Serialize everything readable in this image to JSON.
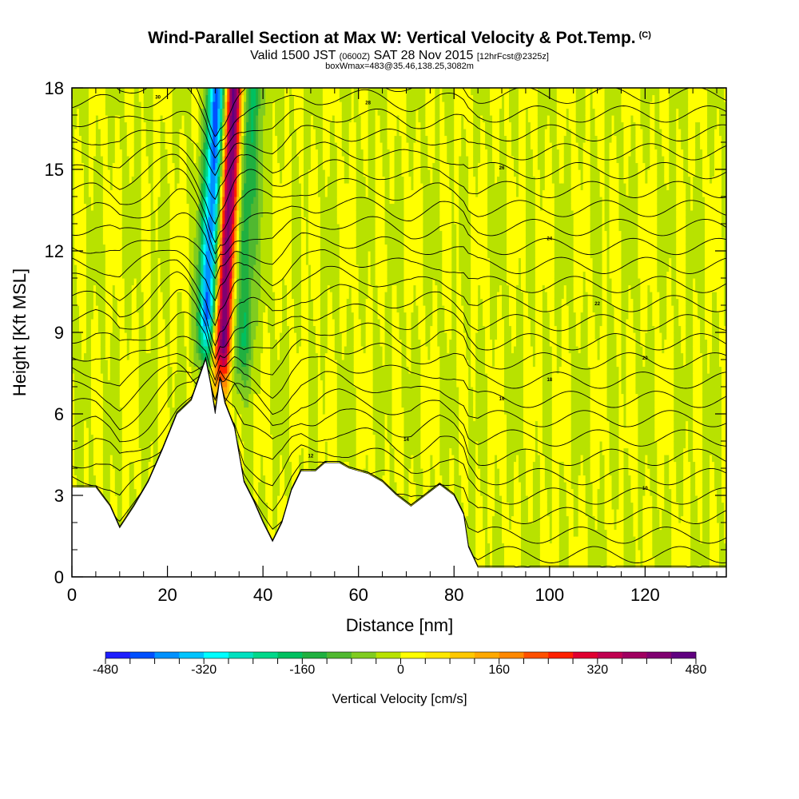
{
  "header": {
    "title": "Wind-Parallel Section at Max W: Vertical Velocity & Pot.Temp.",
    "copyright": "(C)",
    "valid_prefix": "Valid 1500 JST",
    "valid_zulu": "(0600Z)",
    "valid_date": "SAT 28 Nov 2015",
    "forecast": "[12hrFcst@2325z]",
    "box": "boxWmax=483@35.46,138.25,3082m"
  },
  "chart_data": {
    "type": "heatmap",
    "xlabel": "Distance [nm]",
    "ylabel": "Height [Kft MSL]",
    "xlim": [
      0,
      137
    ],
    "ylim": [
      0,
      18
    ],
    "x_ticks": [
      0,
      20,
      40,
      60,
      80,
      100,
      120
    ],
    "y_ticks": [
      0,
      3,
      6,
      9,
      12,
      15,
      18
    ],
    "x_tick_labels": [
      "0",
      "20",
      "40",
      "60",
      "80",
      "100",
      "120"
    ],
    "y_tick_labels": [
      "0",
      "3",
      "6",
      "9",
      "12",
      "15",
      "18"
    ],
    "colorbar": {
      "title": "Vertical Velocity [cm/s]",
      "min": -480,
      "max": 480,
      "tick_values": [
        -480,
        -320,
        -160,
        0,
        160,
        320,
        480
      ],
      "tick_labels": [
        "-480",
        "-320",
        "-160",
        "0",
        "160",
        "320",
        "480"
      ],
      "colors": [
        "#1e1eff",
        "#0050ff",
        "#0091ff",
        "#00c4ff",
        "#00ffff",
        "#00e0c0",
        "#00d88a",
        "#00c060",
        "#20b040",
        "#50b830",
        "#80cc20",
        "#b8e200",
        "#ffff00",
        "#ffe800",
        "#ffc800",
        "#ffa800",
        "#ff8800",
        "#ff5000",
        "#ff2000",
        "#e00030",
        "#c00050",
        "#a00060",
        "#800070",
        "#600080"
      ]
    },
    "terrain_kft": [
      [
        0,
        3.3
      ],
      [
        5,
        3.3
      ],
      [
        8,
        2.6
      ],
      [
        10,
        1.8
      ],
      [
        13,
        2.6
      ],
      [
        16,
        3.5
      ],
      [
        19,
        4.7
      ],
      [
        22,
        6.0
      ],
      [
        25,
        6.5
      ],
      [
        27,
        7.5
      ],
      [
        28,
        8.0
      ],
      [
        29,
        7.1
      ],
      [
        30,
        6.0
      ],
      [
        31,
        7.3
      ],
      [
        32,
        6.4
      ],
      [
        34,
        5.5
      ],
      [
        36,
        3.5
      ],
      [
        38,
        2.8
      ],
      [
        40,
        2.0
      ],
      [
        42,
        1.3
      ],
      [
        44,
        2.0
      ],
      [
        46,
        3.2
      ],
      [
        48,
        3.9
      ],
      [
        51,
        3.9
      ],
      [
        53,
        4.2
      ],
      [
        56,
        4.2
      ],
      [
        58,
        4.0
      ],
      [
        62,
        3.8
      ],
      [
        65,
        3.5
      ],
      [
        68,
        3.0
      ],
      [
        71,
        2.6
      ],
      [
        74,
        3.0
      ],
      [
        77,
        3.4
      ],
      [
        80,
        3.0
      ],
      [
        82,
        2.3
      ],
      [
        83,
        1.1
      ],
      [
        85,
        0.35
      ],
      [
        137,
        0.35
      ]
    ],
    "vertical_velocity_features": [
      {
        "x": 29.0,
        "y_range": [
          7.5,
          18
        ],
        "peak_cm_s": -420
      },
      {
        "x": 32.5,
        "y_range": [
          6.5,
          18
        ],
        "peak_cm_s": 483
      },
      {
        "x": 36.0,
        "y_range": [
          6.5,
          18
        ],
        "peak_cm_s": -170
      }
    ],
    "max_w_cm_s": 483,
    "isentrope_labels": [
      "30",
      "28",
      "26",
      "24",
      "22",
      "20",
      "18",
      "16",
      "14",
      "12",
      "10"
    ]
  }
}
